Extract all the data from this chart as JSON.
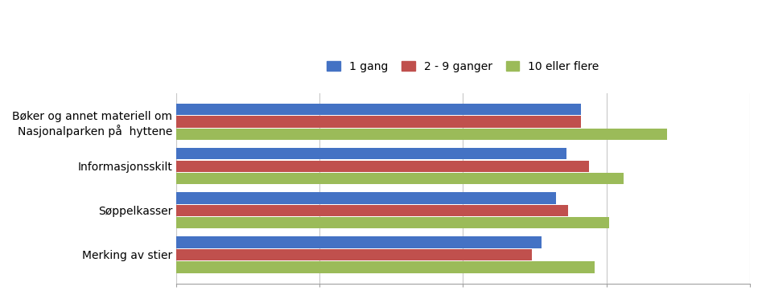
{
  "categories": [
    "Merking av stier",
    "Søppelkasser",
    "Informasjonsskilt",
    "Bøker og annet materiell om\nNasjonalparken på  hyttene"
  ],
  "series": [
    {
      "label": "1 gang",
      "color": "#4472C4",
      "values": [
        3.55,
        3.65,
        3.72,
        3.82
      ]
    },
    {
      "label": "2 - 9 ganger",
      "color": "#C0504D",
      "values": [
        3.48,
        3.73,
        3.88,
        3.82
      ]
    },
    {
      "label": "10 eller flere",
      "color": "#9BBB59",
      "values": [
        3.92,
        4.02,
        4.12,
        4.42
      ]
    }
  ],
  "xlim_min": 1,
  "xlim_max": 5,
  "xticks": [
    1,
    2,
    3,
    4,
    5
  ],
  "background_color": "#FFFFFF",
  "grid_color": "#C8C8C8",
  "bar_height": 0.26,
  "legend_fontsize": 10,
  "tick_fontsize": 9,
  "ylabel_fontsize": 10
}
